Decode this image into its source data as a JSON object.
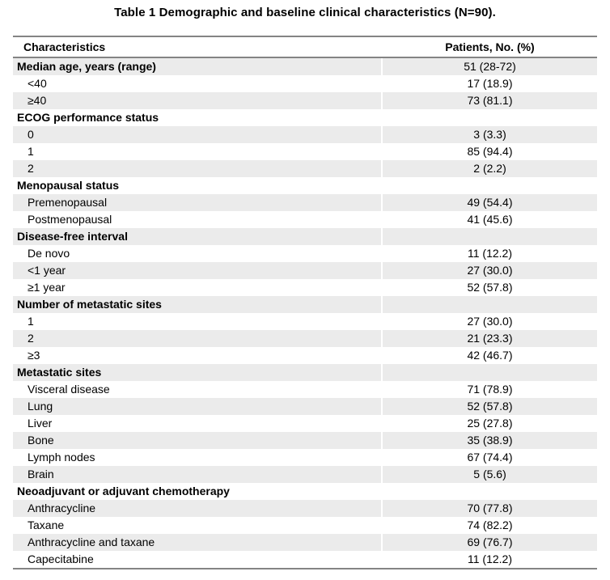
{
  "page": {
    "title": "Table 1 Demographic and baseline clinical characteristics (N=90)."
  },
  "colors": {
    "row_shading": "#ebebeb",
    "rule_lines": "#848484",
    "text": "#000000",
    "background": "#ffffff"
  },
  "table": {
    "columns": [
      "Characteristics",
      "Patients, No. (%)"
    ],
    "rows": [
      {
        "label": "Median age, years (range)",
        "value": "51 (28-72)",
        "level": "category",
        "shaded": true
      },
      {
        "label": "<40",
        "value": "17 (18.9)",
        "level": "sub",
        "shaded": false
      },
      {
        "label": "≥40",
        "value": "73 (81.1)",
        "level": "sub",
        "shaded": true
      },
      {
        "label": "ECOG performance status",
        "value": "",
        "level": "category",
        "shaded": false
      },
      {
        "label": "0",
        "value": "3 (3.3)",
        "level": "sub",
        "shaded": true
      },
      {
        "label": "1",
        "value": "85 (94.4)",
        "level": "sub",
        "shaded": false
      },
      {
        "label": "2",
        "value": "2 (2.2)",
        "level": "sub",
        "shaded": true
      },
      {
        "label": "Menopausal status",
        "value": "",
        "level": "category",
        "shaded": false
      },
      {
        "label": "Premenopausal",
        "value": "49 (54.4)",
        "level": "sub",
        "shaded": true
      },
      {
        "label": "Postmenopausal",
        "value": "41 (45.6)",
        "level": "sub",
        "shaded": false
      },
      {
        "label": "Disease-free interval",
        "value": "",
        "level": "category",
        "shaded": true
      },
      {
        "label": "De novo",
        "value": "11 (12.2)",
        "level": "sub",
        "shaded": false
      },
      {
        "label": "<1 year",
        "value": "27 (30.0)",
        "level": "sub",
        "shaded": true
      },
      {
        "label": "≥1 year",
        "value": "52 (57.8)",
        "level": "sub",
        "shaded": false
      },
      {
        "label": "Number of metastatic sites",
        "value": "",
        "level": "category",
        "shaded": true
      },
      {
        "label": "1",
        "value": "27 (30.0)",
        "level": "sub",
        "shaded": false
      },
      {
        "label": "2",
        "value": "21 (23.3)",
        "level": "sub",
        "shaded": true
      },
      {
        "label": "≥3",
        "value": "42 (46.7)",
        "level": "sub",
        "shaded": false
      },
      {
        "label": "Metastatic sites",
        "value": "",
        "level": "category",
        "shaded": true
      },
      {
        "label": "Visceral disease",
        "value": "71 (78.9)",
        "level": "sub",
        "shaded": false
      },
      {
        "label": "Lung",
        "value": "52 (57.8)",
        "level": "sub",
        "shaded": true
      },
      {
        "label": "Liver",
        "value": "25 (27.8)",
        "level": "sub",
        "shaded": false
      },
      {
        "label": "Bone",
        "value": "35 (38.9)",
        "level": "sub",
        "shaded": true
      },
      {
        "label": "Lymph nodes",
        "value": "67 (74.4)",
        "level": "sub",
        "shaded": false
      },
      {
        "label": "Brain",
        "value": "5 (5.6)",
        "level": "sub",
        "shaded": true
      },
      {
        "label": "Neoadjuvant or adjuvant chemotherapy",
        "value": "",
        "level": "category",
        "shaded": false
      },
      {
        "label": "Anthracycline",
        "value": "70 (77.8)",
        "level": "sub",
        "shaded": true
      },
      {
        "label": "Taxane",
        "value": "74 (82.2)",
        "level": "sub",
        "shaded": false
      },
      {
        "label": "Anthracycline and taxane",
        "value": "69 (76.7)",
        "level": "sub",
        "shaded": true
      },
      {
        "label": "Capecitabine",
        "value": "11 (12.2)",
        "level": "sub",
        "shaded": false
      }
    ]
  }
}
